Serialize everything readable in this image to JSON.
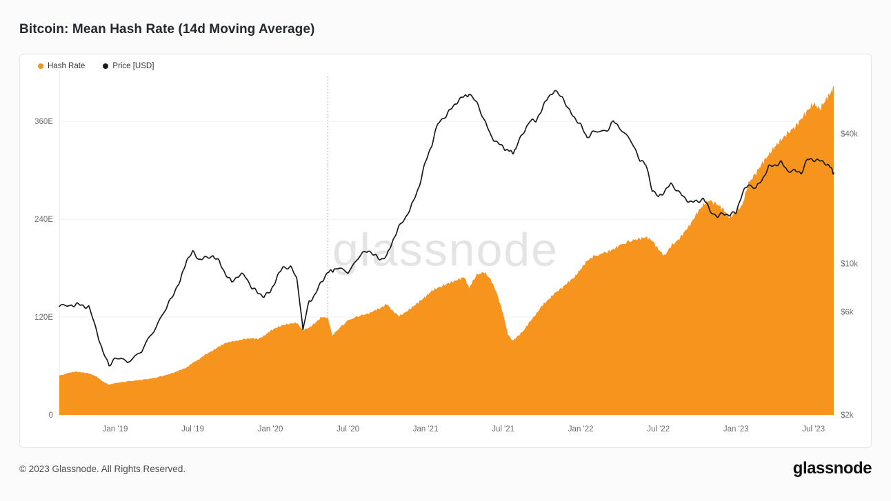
{
  "title": "Bitcoin: Mean Hash Rate (14d Moving Average)",
  "watermark": "glassnode",
  "footer": {
    "copyright": "© 2023 Glassnode. All Rights Reserved.",
    "logo": "glassnode"
  },
  "chart_data": {
    "type": "area+line",
    "title": "Bitcoin: Mean Hash Rate (14d Moving Average)",
    "legend_position": "top-left",
    "grid": "horizontal-light",
    "legend": [
      {
        "label": "Hash Rate",
        "color": "#F7941D"
      },
      {
        "label": "Price [USD]",
        "color": "#1A1A1A"
      }
    ],
    "x_range": [
      2018.64,
      2023.63
    ],
    "left_axis": {
      "scale": "linear",
      "max": 415,
      "ticks": [
        {
          "v": 360,
          "label": "360E"
        },
        {
          "v": 240,
          "label": "240E"
        },
        {
          "v": 120,
          "label": "120E"
        },
        {
          "v": 0,
          "label": "0"
        }
      ]
    },
    "right_axis": {
      "scale": "log",
      "min": 2000,
      "max": 73500,
      "ticks": [
        {
          "v": 40000,
          "label": "$40k"
        },
        {
          "v": 10000,
          "label": "$10k"
        },
        {
          "v": 6000,
          "label": "$6k"
        },
        {
          "v": 2000,
          "label": "$2k"
        }
      ]
    },
    "x_ticks": [
      {
        "t": 2019.0,
        "label": "Jan '19"
      },
      {
        "t": 2019.5,
        "label": "Jul '19"
      },
      {
        "t": 2020.0,
        "label": "Jan '20"
      },
      {
        "t": 2020.5,
        "label": "Jul '20"
      },
      {
        "t": 2021.0,
        "label": "Jan '21"
      },
      {
        "t": 2021.5,
        "label": "Jul '21"
      },
      {
        "t": 2022.0,
        "label": "Jan '22"
      },
      {
        "t": 2022.5,
        "label": "Jul '22"
      },
      {
        "t": 2023.0,
        "label": "Jan '23"
      },
      {
        "t": 2023.5,
        "label": "Jul '23"
      }
    ],
    "annotations": [
      {
        "type": "vline",
        "t": 2020.37
      }
    ],
    "points_t": [
      2018.64,
      2018.71,
      2018.75,
      2018.79,
      2018.83,
      2018.88,
      2018.92,
      2018.96,
      2019.0,
      2019.08,
      2019.17,
      2019.25,
      2019.33,
      2019.38,
      2019.42,
      2019.46,
      2019.5,
      2019.54,
      2019.58,
      2019.63,
      2019.67,
      2019.71,
      2019.75,
      2019.79,
      2019.83,
      2019.88,
      2019.92,
      2019.96,
      2020.0,
      2020.04,
      2020.08,
      2020.13,
      2020.17,
      2020.21,
      2020.25,
      2020.29,
      2020.33,
      2020.37,
      2020.4,
      2020.42,
      2020.5,
      2020.58,
      2020.63,
      2020.67,
      2020.71,
      2020.75,
      2020.79,
      2020.83,
      2020.88,
      2020.92,
      2020.96,
      2021.0,
      2021.04,
      2021.08,
      2021.13,
      2021.17,
      2021.21,
      2021.25,
      2021.28,
      2021.33,
      2021.38,
      2021.42,
      2021.46,
      2021.5,
      2021.53,
      2021.56,
      2021.58,
      2021.63,
      2021.67,
      2021.71,
      2021.75,
      2021.79,
      2021.83,
      2021.88,
      2021.92,
      2021.96,
      2022.0,
      2022.04,
      2022.08,
      2022.17,
      2022.21,
      2022.25,
      2022.33,
      2022.38,
      2022.42,
      2022.46,
      2022.5,
      2022.54,
      2022.58,
      2022.63,
      2022.67,
      2022.71,
      2022.75,
      2022.79,
      2022.83,
      2022.88,
      2022.92,
      2022.96,
      2023.0,
      2023.04,
      2023.08,
      2023.13,
      2023.17,
      2023.21,
      2023.25,
      2023.29,
      2023.33,
      2023.38,
      2023.42,
      2023.46,
      2023.5,
      2023.54,
      2023.58,
      2023.61,
      2023.63
    ],
    "hash_rate_eh": [
      48,
      52,
      53,
      52,
      51,
      47,
      41,
      37,
      39,
      41,
      43,
      45,
      49,
      52,
      55,
      58,
      64,
      68,
      74,
      79,
      84,
      88,
      90,
      91,
      93,
      94,
      93,
      97,
      103,
      107,
      110,
      112,
      113,
      104,
      107,
      113,
      120,
      119,
      97,
      102,
      116,
      122,
      124,
      128,
      131,
      136,
      127,
      121,
      127,
      133,
      139,
      145,
      152,
      156,
      160,
      163,
      166,
      169,
      156,
      172,
      175,
      166,
      149,
      124,
      99,
      91,
      94,
      103,
      114,
      123,
      134,
      141,
      149,
      156,
      163,
      169,
      179,
      189,
      194,
      200,
      203,
      208,
      214,
      216,
      218,
      214,
      203,
      195,
      207,
      215,
      225,
      235,
      248,
      258,
      263,
      258,
      252,
      242,
      249,
      257,
      284,
      297,
      309,
      319,
      329,
      337,
      345,
      353,
      363,
      373,
      382,
      375,
      387,
      395,
      402
    ],
    "price_usd": [
      6350,
      6400,
      6500,
      6400,
      6300,
      4900,
      3900,
      3400,
      3650,
      3550,
      3900,
      4950,
      6200,
      7400,
      8300,
      10400,
      11300,
      10500,
      10600,
      10900,
      10200,
      9000,
      8200,
      8800,
      8900,
      7800,
      7300,
      7100,
      7400,
      8600,
      9600,
      9700,
      8500,
      4900,
      6700,
      7200,
      8300,
      9100,
      9300,
      9500,
      9200,
      10900,
      11600,
      10900,
      10500,
      10800,
      12900,
      14800,
      16800,
      19200,
      23000,
      29500,
      35500,
      44500,
      48500,
      52500,
      57000,
      59500,
      61000,
      55500,
      46000,
      39000,
      36500,
      34500,
      33500,
      32500,
      34000,
      40500,
      45500,
      46000,
      51500,
      59500,
      62500,
      59500,
      51500,
      47500,
      43500,
      38500,
      40500,
      41500,
      45500,
      43000,
      36000,
      30500,
      28500,
      22000,
      20300,
      21700,
      23300,
      21700,
      19900,
      19400,
      19300,
      20100,
      17700,
      16500,
      17100,
      16800,
      17300,
      21000,
      23300,
      22400,
      24600,
      28000,
      28600,
      29400,
      27100,
      26800,
      26300,
      30300,
      30400,
      29900,
      29200,
      27800,
      26300
    ]
  }
}
